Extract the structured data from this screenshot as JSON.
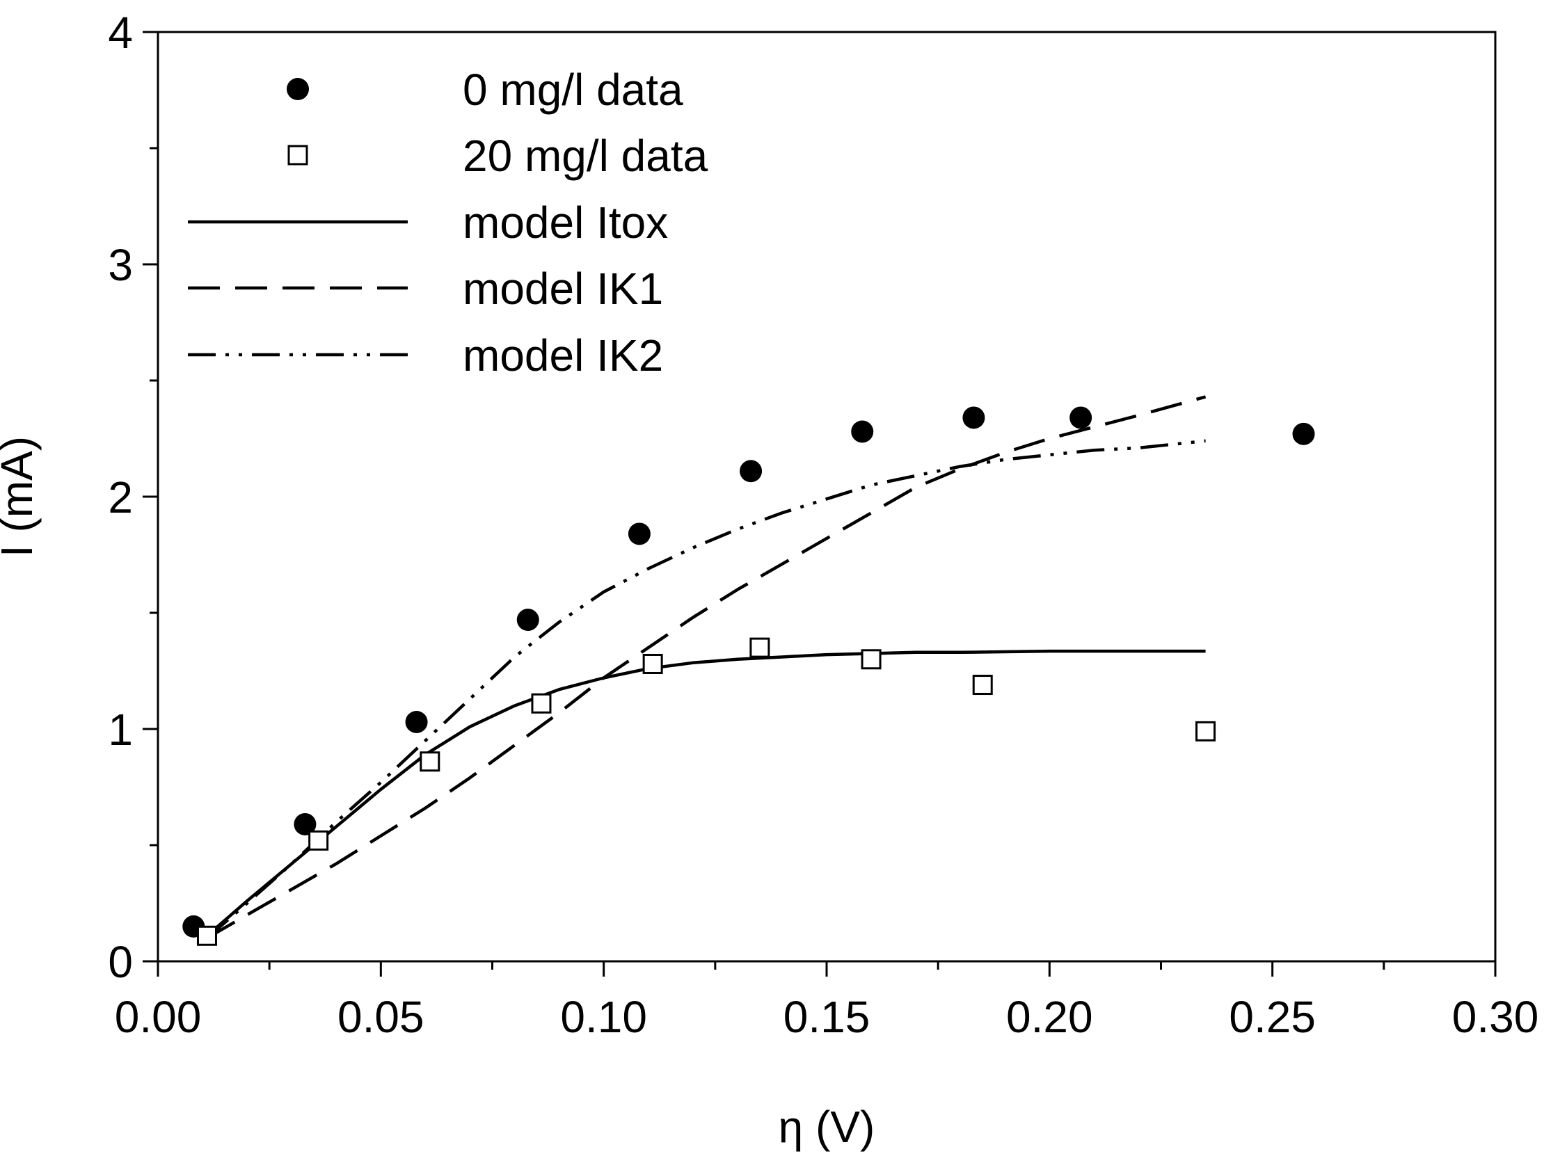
{
  "chart_data": {
    "type": "scatter",
    "title": "",
    "xlabel": "η (V)",
    "ylabel": "I (mA)",
    "xlim": [
      0.0,
      0.3
    ],
    "ylim": [
      0,
      4
    ],
    "xticks": [
      "0.00",
      "0.05",
      "0.10",
      "0.15",
      "0.20",
      "0.25",
      "0.30"
    ],
    "xtick_values": [
      0.0,
      0.05,
      0.1,
      0.15,
      0.2,
      0.25,
      0.3
    ],
    "yticks": [
      "0",
      "1",
      "2",
      "3",
      "4"
    ],
    "ytick_values": [
      0,
      1,
      2,
      3,
      4
    ],
    "grid": false,
    "legend_position": "top-left",
    "series": [
      {
        "name": "0 mg/l data",
        "kind": "markers",
        "marker": "filled-circle",
        "x": [
          0.008,
          0.033,
          0.058,
          0.083,
          0.108,
          0.133,
          0.158,
          0.183,
          0.207,
          0.257
        ],
        "y": [
          0.15,
          0.59,
          1.03,
          1.47,
          1.84,
          2.11,
          2.28,
          2.34,
          2.34,
          2.27
        ]
      },
      {
        "name": "20 mg/l data",
        "kind": "markers",
        "marker": "open-square",
        "x": [
          0.011,
          0.036,
          0.061,
          0.086,
          0.111,
          0.135,
          0.16,
          0.185,
          0.235
        ],
        "y": [
          0.11,
          0.52,
          0.86,
          1.11,
          1.28,
          1.35,
          1.3,
          1.19,
          0.99
        ]
      },
      {
        "name": "model Itox",
        "kind": "line",
        "dash": "solid",
        "x": [
          0.011,
          0.02,
          0.03,
          0.04,
          0.05,
          0.06,
          0.07,
          0.08,
          0.09,
          0.1,
          0.11,
          0.12,
          0.13,
          0.14,
          0.15,
          0.16,
          0.17,
          0.18,
          0.2,
          0.22,
          0.235
        ],
        "y": [
          0.11,
          0.26,
          0.42,
          0.58,
          0.74,
          0.89,
          1.01,
          1.1,
          1.17,
          1.22,
          1.26,
          1.285,
          1.3,
          1.31,
          1.32,
          1.325,
          1.33,
          1.33,
          1.335,
          1.335,
          1.335
        ]
      },
      {
        "name": "model IK1",
        "kind": "line",
        "dash": "long-dash",
        "x": [
          0.011,
          0.02,
          0.03,
          0.04,
          0.05,
          0.06,
          0.07,
          0.08,
          0.09,
          0.1,
          0.11,
          0.12,
          0.13,
          0.14,
          0.15,
          0.16,
          0.17,
          0.18,
          0.19,
          0.2,
          0.21,
          0.22,
          0.235
        ],
        "y": [
          0.1,
          0.2,
          0.31,
          0.42,
          0.54,
          0.66,
          0.79,
          0.93,
          1.07,
          1.22,
          1.35,
          1.48,
          1.6,
          1.71,
          1.82,
          1.93,
          2.04,
          2.12,
          2.19,
          2.25,
          2.3,
          2.35,
          2.43
        ]
      },
      {
        "name": "model IK2",
        "kind": "line",
        "dash": "dash-dot-dot",
        "x": [
          0.011,
          0.02,
          0.03,
          0.04,
          0.05,
          0.06,
          0.07,
          0.08,
          0.09,
          0.1,
          0.11,
          0.12,
          0.13,
          0.14,
          0.15,
          0.16,
          0.17,
          0.18,
          0.19,
          0.2,
          0.21,
          0.22,
          0.235
        ],
        "y": [
          0.1,
          0.25,
          0.42,
          0.6,
          0.77,
          0.95,
          1.13,
          1.31,
          1.46,
          1.59,
          1.69,
          1.78,
          1.86,
          1.93,
          1.99,
          2.05,
          2.09,
          2.13,
          2.16,
          2.18,
          2.2,
          2.21,
          2.24
        ]
      }
    ]
  }
}
